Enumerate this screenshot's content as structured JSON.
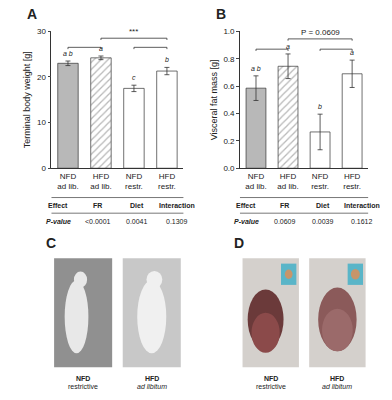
{
  "chart_data": [
    {
      "type": "bar",
      "title": "A",
      "ylabel": "Terminal body weight [g]",
      "categories": [
        "NFD\nad lib.",
        "HFD\nad lib.",
        "NFD\nrestr.",
        "HFD\nrestr."
      ],
      "values": [
        23.0,
        24.2,
        17.5,
        21.3
      ],
      "errors": [
        0.5,
        0.4,
        0.7,
        0.8
      ],
      "colors": [
        "#b8b8b8",
        "#b8b8b8",
        "#ffffff",
        "#ffffff"
      ],
      "hatch": [
        "",
        "////",
        "",
        "////"
      ],
      "edge_color": "#333333",
      "error_color": "#333333",
      "ylim": [
        0,
        30
      ],
      "yticks": [
        0,
        10,
        20,
        30
      ],
      "grid": false,
      "letters": [
        "a b",
        "a",
        "c",
        "b"
      ],
      "brackets": [
        {
          "x1": 1,
          "x2": 3,
          "y": 28.5,
          "label": "***"
        },
        {
          "x1": 0,
          "x2": 1,
          "y": 26.5
        },
        {
          "x1": 2,
          "x2": 3,
          "y": 26.5
        }
      ],
      "table": {
        "headers": [
          "Effect",
          "FR",
          "Diet",
          "Interaction"
        ],
        "row": [
          "P-value",
          "<0.0001",
          "0.0041",
          "0.1309"
        ]
      }
    },
    {
      "type": "bar",
      "title": "B",
      "ylabel": "Visceral fat mass [g]",
      "categories": [
        "NFD\nad lib.",
        "HFD\nad lib.",
        "NFD\nrestr.",
        "HFD\nrestr."
      ],
      "values": [
        0.585,
        0.745,
        0.265,
        0.69
      ],
      "errors": [
        0.09,
        0.09,
        0.13,
        0.1
      ],
      "colors": [
        "#b8b8b8",
        "#b8b8b8",
        "#ffffff",
        "#ffffff"
      ],
      "hatch": [
        "",
        "////",
        "",
        "////"
      ],
      "edge_color": "#333333",
      "error_color": "#333333",
      "ylim": [
        0.0,
        1.0
      ],
      "yticks": [
        {
          "value": 0.0,
          "label": "0.0"
        },
        0.2,
        0.4,
        0.6,
        0.8,
        {
          "value": 1.0,
          "label": "1.0"
        }
      ],
      "grid": false,
      "letters": [
        "a b",
        "a",
        "b",
        "a"
      ],
      "brackets": [
        {
          "x1": 1,
          "x2": 3,
          "y": 0.945,
          "label": "P = 0.0609"
        },
        {
          "x1": 0,
          "x2": 1,
          "y": 0.87
        },
        {
          "x1": 2,
          "x2": 3,
          "y": 0.87
        }
      ],
      "table": {
        "headers": [
          "Effect",
          "FR",
          "Diet",
          "Interaction"
        ],
        "row": [
          "P-value",
          "0.0609",
          "0.0039",
          "0.1612"
        ]
      }
    },
    {
      "type": "photo",
      "title": "C",
      "labels": [
        [
          "NFD",
          "restrictive"
        ],
        [
          "HFD",
          "ad libitum"
        ]
      ],
      "colors": [
        "#909090",
        "#c8c8c8"
      ]
    },
    {
      "type": "dissection",
      "title": "D",
      "labels": [
        [
          "NFD",
          "restrictive"
        ],
        [
          "HFD",
          "ad libitum"
        ]
      ],
      "colors": [
        "#6b3a3a",
        "#8b5a5a",
        "#5ab5c8",
        "#c8956a"
      ]
    }
  ]
}
